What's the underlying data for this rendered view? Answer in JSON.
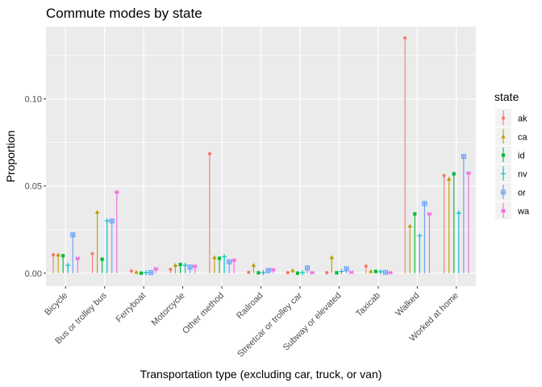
{
  "chart_data": {
    "type": "scatter",
    "title": "Commute modes by state",
    "xlabel": "Transportation type (excluding car, truck, or van)",
    "ylabel": "Proportion",
    "ylim": [
      -0.0075,
      0.1415
    ],
    "y_ticks": [
      "0.00",
      "0.05",
      "0.10"
    ],
    "y_tick_values": [
      0,
      0.05,
      0.1
    ],
    "grid": true,
    "legend": {
      "title": "state",
      "position": "right"
    },
    "categories": [
      "Bicycle",
      "Bus or trolley bus",
      "Ferryboat",
      "Motorcycle",
      "Other method",
      "Railroad",
      "Streetcar or trolley car",
      "Subway or elevated",
      "Taxicab",
      "Walked",
      "Worked at home"
    ],
    "series": [
      {
        "name": "ak",
        "color": "#F8766D",
        "shape": "circle",
        "values": [
          0.0105,
          0.0112,
          0.0012,
          0.0022,
          0.0685,
          0.0005,
          0.0003,
          0.0003,
          0.004,
          0.135,
          0.056
        ]
      },
      {
        "name": "ca",
        "color": "#B79F00",
        "shape": "triangle",
        "values": [
          0.0105,
          0.035,
          0.0005,
          0.0045,
          0.009,
          0.0045,
          0.0015,
          0.009,
          0.001,
          0.027,
          0.054
        ]
      },
      {
        "name": "id",
        "color": "#00BA38",
        "shape": "square",
        "values": [
          0.01,
          0.008,
          0.0,
          0.005,
          0.0085,
          0.0002,
          0.0,
          0.0002,
          0.001,
          0.034,
          0.057
        ]
      },
      {
        "name": "nv",
        "color": "#00BFC4",
        "shape": "plus",
        "values": [
          0.0045,
          0.03,
          0.0002,
          0.0045,
          0.0095,
          0.0003,
          0.0003,
          0.001,
          0.0008,
          0.0215,
          0.0345
        ]
      },
      {
        "name": "or",
        "color": "#619CFF",
        "shape": "boxplus",
        "values": [
          0.022,
          0.03,
          0.0003,
          0.0035,
          0.0065,
          0.0015,
          0.003,
          0.0025,
          0.0005,
          0.04,
          0.067
        ]
      },
      {
        "name": "wa",
        "color": "#F564E3",
        "shape": "asterisk",
        "values": [
          0.0085,
          0.0465,
          0.0025,
          0.004,
          0.0075,
          0.002,
          0.0003,
          0.0005,
          0.0003,
          0.034,
          0.0575
        ]
      }
    ]
  }
}
